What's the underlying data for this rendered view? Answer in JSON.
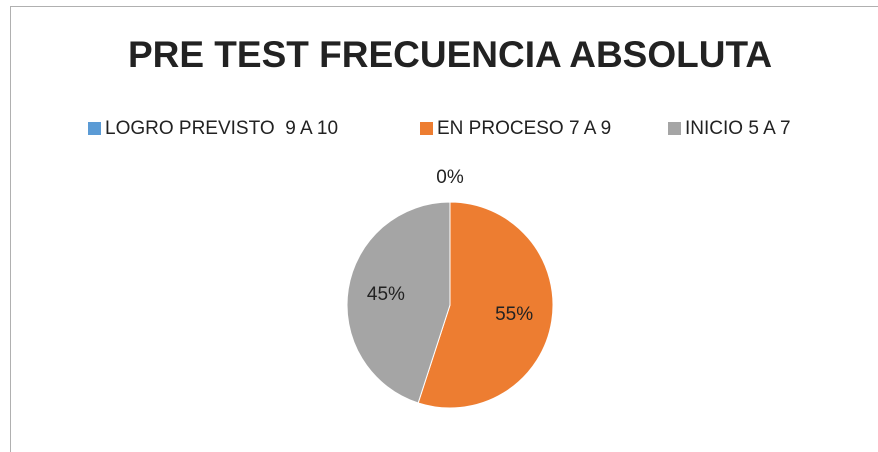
{
  "chart_data": {
    "type": "pie",
    "title": "PRE TEST FRECUENCIA ABSOLUTA",
    "categories": [
      "LOGRO PREVISTO  9 A 10",
      "EN PROCESO 7 A 9",
      "INICIO 5 A 7"
    ],
    "values": [
      0,
      55,
      45
    ],
    "value_labels": [
      "0%",
      "55%",
      "45%"
    ],
    "colors": [
      "#5b9bd5",
      "#ed7d31",
      "#a5a5a5"
    ],
    "legend": "top"
  }
}
